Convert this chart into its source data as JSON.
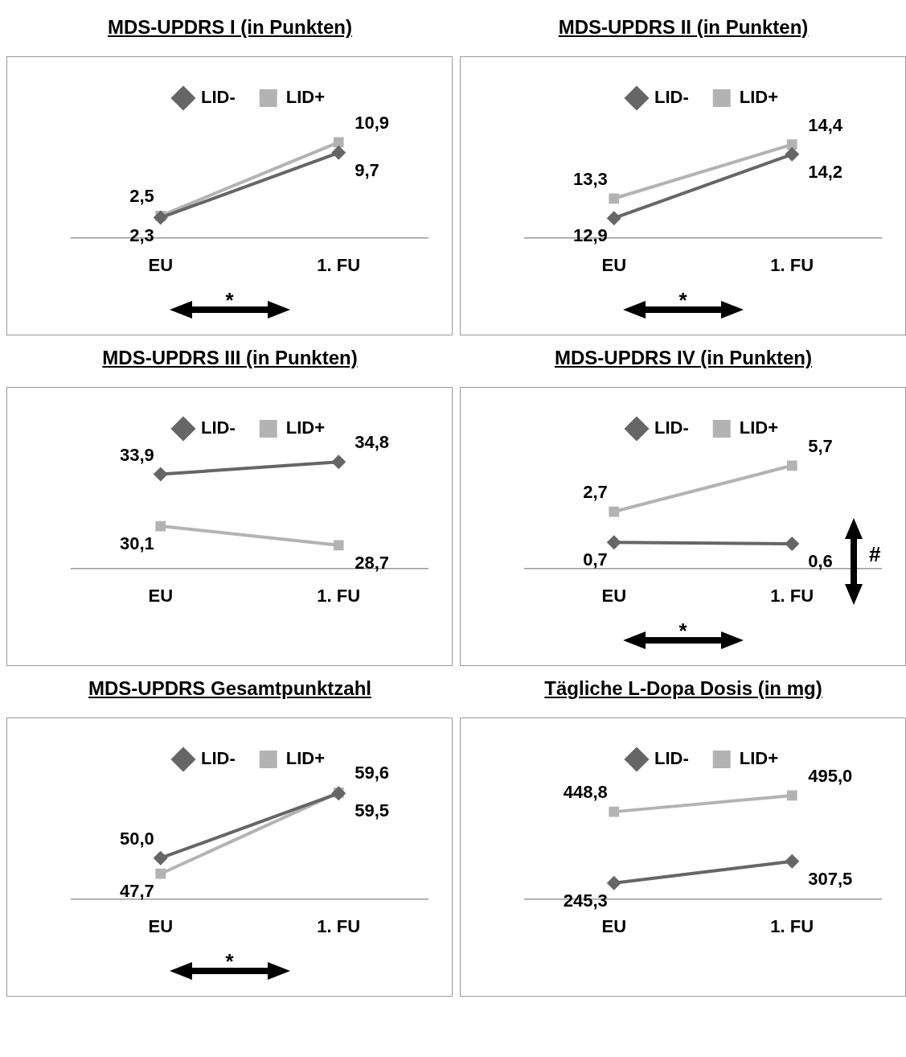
{
  "chart_data": [
    {
      "type": "line",
      "title": "MDS-UPDRS I (in Punkten)",
      "categories": [
        "EU",
        "1. FU"
      ],
      "legend": "top",
      "data_labels": true,
      "annotations": [
        "*"
      ],
      "series": [
        {
          "name": "LID-",
          "color": "#666666",
          "marker": "diamond",
          "values": [
            2.3,
            9.7
          ],
          "value_labels": [
            "2,3",
            "9,7"
          ]
        },
        {
          "name": "LID+",
          "color": "#b3b3b3",
          "marker": "square",
          "values": [
            2.5,
            10.9
          ],
          "value_labels": [
            "2,5",
            "10,9"
          ]
        }
      ]
    },
    {
      "type": "line",
      "title": "MDS-UPDRS II (in Punkten)",
      "categories": [
        "EU",
        "1. FU"
      ],
      "legend": "top",
      "data_labels": true,
      "annotations": [
        "*"
      ],
      "series": [
        {
          "name": "LID-",
          "color": "#666666",
          "marker": "diamond",
          "values": [
            12.9,
            14.2
          ],
          "value_labels": [
            "12,9",
            "14,2"
          ]
        },
        {
          "name": "LID+",
          "color": "#b3b3b3",
          "marker": "square",
          "values": [
            13.3,
            14.4
          ],
          "value_labels": [
            "13,3",
            "14,4"
          ]
        }
      ]
    },
    {
      "type": "line",
      "title": "MDS-UPDRS III (in Punkten)",
      "categories": [
        "EU",
        "1. FU"
      ],
      "legend": "top",
      "data_labels": true,
      "series": [
        {
          "name": "LID-",
          "color": "#666666",
          "marker": "diamond",
          "values": [
            33.9,
            34.8
          ],
          "value_labels": [
            "33,9",
            "34,8"
          ]
        },
        {
          "name": "LID+",
          "color": "#b3b3b3",
          "marker": "square",
          "values": [
            30.1,
            28.7
          ],
          "value_labels": [
            "30,1",
            "28,7"
          ]
        }
      ]
    },
    {
      "type": "line",
      "title": "MDS-UPDRS IV (in Punkten)",
      "categories": [
        "EU",
        "1. FU"
      ],
      "legend": "top",
      "data_labels": true,
      "annotations": [
        "*",
        "#"
      ],
      "series": [
        {
          "name": "LID-",
          "color": "#666666",
          "marker": "diamond",
          "values": [
            0.7,
            0.6
          ],
          "value_labels": [
            "0,7",
            "0,6"
          ]
        },
        {
          "name": "LID+",
          "color": "#b3b3b3",
          "marker": "square",
          "values": [
            2.7,
            5.7
          ],
          "value_labels": [
            "2,7",
            "5,7"
          ]
        }
      ]
    },
    {
      "type": "line",
      "title": "MDS-UPDRS Gesamtpunktzahl",
      "categories": [
        "EU",
        "1. FU"
      ],
      "legend": "top",
      "data_labels": true,
      "annotations": [
        "*"
      ],
      "series": [
        {
          "name": "LID-",
          "color": "#666666",
          "marker": "diamond",
          "values": [
            50.0,
            59.5
          ],
          "value_labels": [
            "50,0",
            "59,5"
          ]
        },
        {
          "name": "LID+",
          "color": "#b3b3b3",
          "marker": "square",
          "values": [
            47.7,
            59.6
          ],
          "value_labels": [
            "47,7",
            "59,6"
          ]
        }
      ]
    },
    {
      "type": "line",
      "title": "Tägliche L-Dopa Dosis (in mg)",
      "categories": [
        "EU",
        "1. FU"
      ],
      "legend": "top",
      "data_labels": true,
      "series": [
        {
          "name": "LID-",
          "color": "#666666",
          "marker": "diamond",
          "values": [
            245.3,
            307.5
          ],
          "value_labels": [
            "245,3",
            "307,5"
          ]
        },
        {
          "name": "LID+",
          "color": "#b3b3b3",
          "marker": "square",
          "values": [
            448.8,
            495.0
          ],
          "value_labels": [
            "448,8",
            "495,0"
          ]
        }
      ]
    }
  ]
}
